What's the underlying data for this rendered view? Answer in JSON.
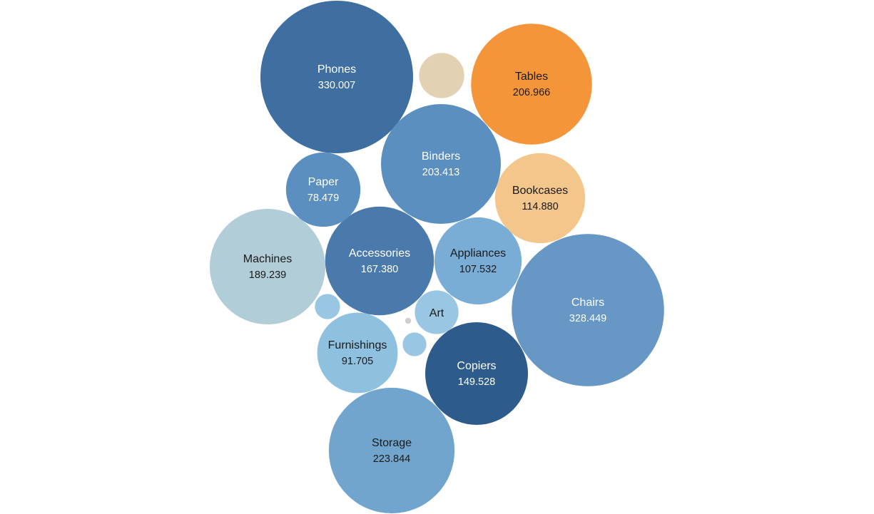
{
  "chart_data": {
    "type": "bubble",
    "title": "",
    "colors": {
      "very_dark_blue": "#2d5b8c",
      "dark_blue": "#3f6fa0",
      "mid_dark_blue": "#4a7aab",
      "mid_blue": "#5a8fbf",
      "steel_blue": "#6797c5",
      "light_steel_blue": "#72a5cd",
      "light_blue": "#7aadd6",
      "pale_blue": "#8ec0df",
      "very_pale_blue": "#99c7e3",
      "grey_blue": "#b1cdd8",
      "orange": "#f5953a",
      "light_orange": "#f3c68c",
      "tan": "#e3d1b3",
      "grey": "#cfcfcf"
    },
    "bubbles": [
      {
        "name": "Phones",
        "label": "330.007",
        "value": 330.007,
        "color": "#3f6fa0",
        "text_color": "#ffffff"
      },
      {
        "name": "Chairs",
        "label": "328.449",
        "value": 328.449,
        "color": "#6797c5",
        "text_color": "#ffffff"
      },
      {
        "name": "Storage",
        "label": "223.844",
        "value": 223.844,
        "color": "#72a5cd",
        "text_color": "#1a1a1a"
      },
      {
        "name": "Tables",
        "label": "206.966",
        "value": 206.966,
        "color": "#f5953a",
        "text_color": "#1a1a1a"
      },
      {
        "name": "Binders",
        "label": "203.413",
        "value": 203.413,
        "color": "#5a8fbf",
        "text_color": "#ffffff"
      },
      {
        "name": "Machines",
        "label": "189.239",
        "value": 189.239,
        "color": "#b1cdd8",
        "text_color": "#1a1a1a"
      },
      {
        "name": "Accessories",
        "label": "167.380",
        "value": 167.38,
        "color": "#4a7aab",
        "text_color": "#ffffff"
      },
      {
        "name": "Copiers",
        "label": "149.528",
        "value": 149.528,
        "color": "#2d5b8c",
        "text_color": "#ffffff"
      },
      {
        "name": "Bookcases",
        "label": "114.880",
        "value": 114.88,
        "color": "#f3c68c",
        "text_color": "#1a1a1a"
      },
      {
        "name": "Appliances",
        "label": "107.532",
        "value": 107.532,
        "color": "#7aadd6",
        "text_color": "#1a1a1a"
      },
      {
        "name": "Furnishings",
        "label": "91.705",
        "value": 91.705,
        "color": "#8ec0df",
        "text_color": "#1a1a1a"
      },
      {
        "name": "Paper",
        "label": "78.479",
        "value": 78.479,
        "color": "#5a8fbf",
        "text_color": "#ffffff"
      },
      {
        "name": "Art",
        "label": "",
        "value": 27.0,
        "color": "#99c7e3",
        "text_color": "#1a1a1a"
      },
      {
        "name": "",
        "label": "",
        "value": 29.0,
        "color": "#e3d1b3",
        "text_color": "#1a1a1a"
      },
      {
        "name": "",
        "label": "",
        "value": 9.0,
        "color": "#99c7e3",
        "text_color": "#1a1a1a"
      },
      {
        "name": "",
        "label": "",
        "value": 8.0,
        "color": "#99c7e3",
        "text_color": "#1a1a1a"
      },
      {
        "name": "",
        "label": "",
        "value": 0.5,
        "color": "#cfcfcf",
        "text_color": "#1a1a1a"
      }
    ]
  }
}
